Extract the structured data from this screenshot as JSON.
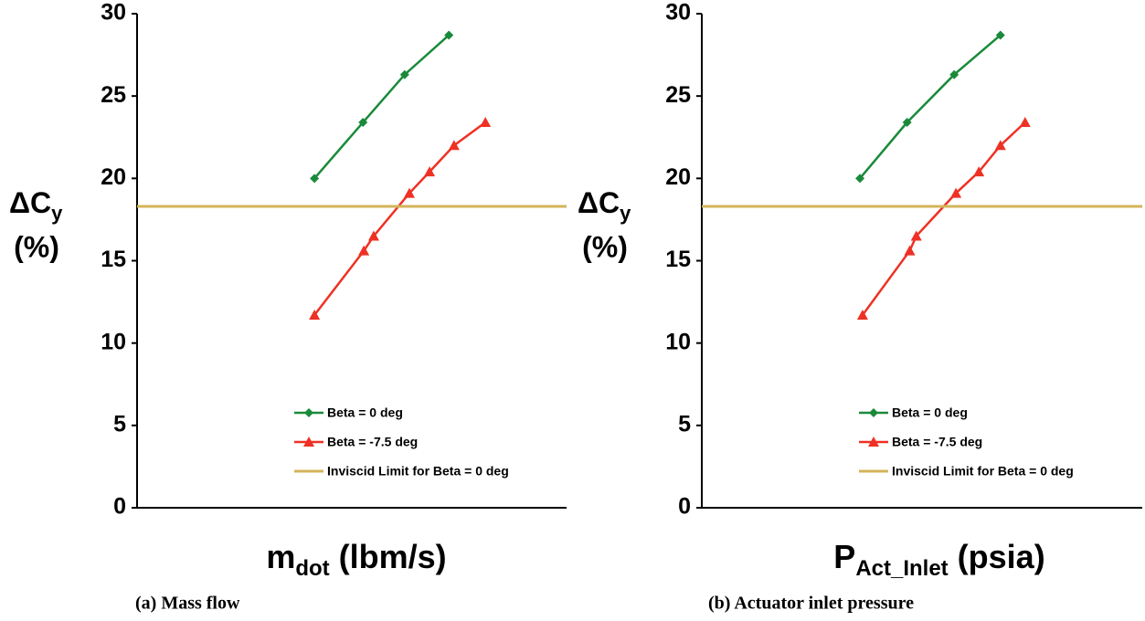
{
  "chart_data": [
    {
      "type": "line",
      "ylabel": {
        "main": "ΔC",
        "sub": "y",
        "unit": "(%)"
      },
      "xlabel": {
        "main": "m",
        "sub": "dot",
        "unit": "(lbm/s)"
      },
      "caption": "(a) Mass flow",
      "xlim": [
        0,
        1
      ],
      "ylim": [
        0,
        30
      ],
      "yticks": [
        0,
        5,
        10,
        15,
        20,
        25,
        30
      ],
      "legend": "lower right",
      "series": [
        {
          "name": "Beta = 0 deg",
          "color": "#1a8a3a",
          "marker": "diamond",
          "x": [
            0.413,
            0.526,
            0.623,
            0.726
          ],
          "values": [
            20,
            23.4,
            26.3,
            28.7
          ]
        },
        {
          "name": "Beta = -7.5 deg",
          "color": "#ee3124",
          "marker": "triangle",
          "x": [
            0.413,
            0.528,
            0.551,
            0.634,
            0.681,
            0.738,
            0.811
          ],
          "values": [
            11.7,
            15.6,
            16.5,
            19.1,
            20.4,
            22,
            23.4
          ]
        },
        {
          "name": "Inviscid Limit for Beta = 0 deg",
          "color": "#d4b45a",
          "hline": 18.3
        }
      ]
    },
    {
      "type": "line",
      "ylabel": {
        "main": "ΔC",
        "sub": "y",
        "unit": "(%)"
      },
      "xlabel": {
        "main": "P",
        "sub": "Act_Inlet",
        "unit": "(psia)"
      },
      "caption": "(b) Actuator inlet pressure",
      "xlim": [
        0,
        1
      ],
      "ylim": [
        0,
        30
      ],
      "yticks": [
        0,
        5,
        10,
        15,
        20,
        25,
        30
      ],
      "legend": "lower right",
      "series": [
        {
          "name": "Beta = 0 deg",
          "color": "#1a8a3a",
          "marker": "diamond",
          "x": [
            0.359,
            0.466,
            0.573,
            0.678
          ],
          "values": [
            20,
            23.4,
            26.3,
            28.7
          ]
        },
        {
          "name": "Beta = -7.5 deg",
          "color": "#ee3124",
          "marker": "triangle",
          "x": [
            0.365,
            0.472,
            0.487,
            0.577,
            0.629,
            0.678,
            0.734
          ],
          "values": [
            11.7,
            15.6,
            16.5,
            19.1,
            20.4,
            22,
            23.4
          ]
        },
        {
          "name": "Inviscid Limit for Beta = 0 deg",
          "color": "#d4b45a",
          "hline": 18.3
        }
      ]
    }
  ]
}
